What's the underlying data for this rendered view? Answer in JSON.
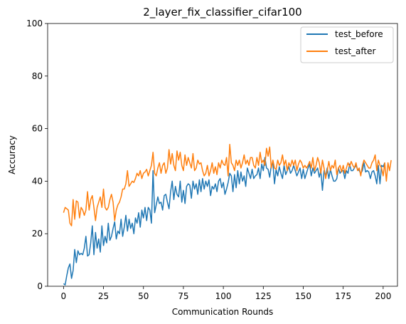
{
  "chart_data": {
    "type": "line",
    "title": "2_layer_fix_classifier_cifar100",
    "xlabel": "Communication Rounds",
    "ylabel": "Accuracy",
    "xlim": [
      -9.95,
      208.95
    ],
    "ylim": [
      0,
      100
    ],
    "xticks": [
      0,
      25,
      50,
      75,
      100,
      125,
      150,
      175,
      200
    ],
    "yticks": [
      0,
      20,
      40,
      60,
      80,
      100
    ],
    "grid": false,
    "legend_position": "top-right",
    "series": [
      {
        "name": "test_before",
        "color": "#1f77b4",
        "values": [
          1.0,
          0.5,
          4.0,
          7.0,
          8.5,
          3.0,
          6.0,
          14.0,
          9.0,
          13.5,
          12.0,
          12.5,
          12.0,
          14.5,
          19.0,
          11.5,
          12.0,
          16.5,
          23.0,
          12.0,
          20.5,
          14.5,
          18.0,
          13.0,
          23.0,
          15.5,
          19.0,
          16.5,
          24.0,
          17.5,
          19.0,
          22.0,
          24.5,
          18.0,
          21.0,
          20.0,
          25.5,
          19.0,
          22.5,
          27.0,
          21.0,
          25.5,
          22.0,
          24.0,
          20.0,
          26.0,
          24.0,
          28.0,
          22.5,
          29.0,
          26.0,
          30.0,
          25.0,
          30.0,
          29.0,
          24.0,
          44.0,
          28.0,
          31.0,
          34.0,
          31.5,
          32.0,
          29.0,
          34.5,
          35.0,
          32.0,
          29.5,
          36.0,
          40.0,
          33.0,
          38.0,
          35.0,
          34.0,
          40.0,
          32.0,
          36.5,
          31.5,
          38.0,
          39.0,
          38.5,
          33.5,
          40.0,
          37.0,
          39.0,
          35.0,
          40.5,
          36.0,
          41.0,
          37.0,
          40.0,
          38.0,
          40.5,
          34.5,
          38.0,
          37.0,
          39.0,
          36.0,
          40.0,
          41.0,
          37.5,
          39.5,
          35.0,
          37.0,
          39.5,
          43.0,
          42.0,
          36.0,
          42.5,
          37.5,
          44.0,
          39.0,
          43.5,
          40.0,
          42.0,
          38.0,
          45.0,
          43.0,
          41.0,
          44.5,
          41.0,
          42.0,
          42.5,
          45.0,
          41.0,
          46.5,
          44.0,
          49.0,
          45.0,
          44.5,
          41.5,
          46.0,
          47.0,
          39.0,
          44.5,
          42.0,
          45.5,
          43.0,
          41.0,
          46.0,
          42.5,
          44.0,
          45.5,
          43.0,
          44.0,
          46.0,
          44.0,
          42.0,
          43.5,
          45.0,
          41.0,
          44.5,
          41.0,
          43.0,
          45.0,
          46.5,
          42.0,
          45.0,
          43.0,
          44.0,
          45.0,
          41.5,
          44.0,
          36.5,
          44.0,
          42.0,
          45.0,
          41.0,
          44.5,
          42.0,
          40.0,
          40.0,
          41.0,
          45.0,
          43.0,
          44.0,
          44.0,
          41.0,
          44.0,
          43.0,
          46.5,
          44.0,
          44.0,
          45.0,
          46.0,
          44.5,
          44.0,
          43.0,
          44.0,
          47.0,
          43.5,
          44.0,
          43.5,
          41.0,
          43.5,
          44.0,
          42.0,
          39.0,
          46.0,
          39.0,
          46.0,
          45.5,
          47.0
        ]
      },
      {
        "name": "test_after",
        "color": "#ff7f0e",
        "values": [
          28.0,
          30.0,
          29.5,
          29.0,
          24.0,
          23.0,
          33.0,
          25.5,
          32.5,
          32.0,
          26.0,
          30.0,
          29.0,
          27.0,
          29.0,
          36.0,
          29.0,
          33.0,
          34.5,
          30.0,
          25.0,
          30.0,
          32.0,
          34.0,
          30.0,
          37.0,
          30.0,
          29.0,
          30.0,
          33.0,
          35.0,
          32.0,
          25.0,
          29.0,
          31.0,
          32.0,
          34.0,
          37.0,
          37.0,
          39.0,
          44.0,
          38.0,
          39.0,
          40.0,
          39.5,
          41.0,
          43.0,
          42.0,
          44.0,
          41.0,
          43.0,
          43.5,
          44.5,
          42.0,
          44.0,
          46.0,
          51.0,
          43.0,
          42.0,
          45.0,
          47.0,
          43.0,
          46.0,
          47.0,
          43.0,
          45.0,
          52.0,
          46.5,
          50.5,
          46.0,
          44.0,
          51.5,
          48.0,
          51.0,
          46.0,
          44.0,
          50.0,
          46.0,
          49.0,
          47.0,
          45.0,
          50.5,
          44.0,
          45.0,
          48.0,
          46.5,
          47.0,
          44.0,
          42.0,
          43.0,
          46.0,
          42.0,
          44.0,
          47.0,
          43.0,
          45.5,
          42.5,
          47.0,
          45.0,
          48.0,
          46.5,
          46.0,
          49.0,
          42.0,
          54.0,
          47.0,
          46.0,
          44.0,
          48.0,
          46.0,
          48.0,
          45.0,
          47.0,
          50.0,
          46.5,
          48.0,
          46.0,
          49.0,
          49.0,
          46.0,
          45.0,
          49.0,
          46.0,
          51.0,
          47.0,
          48.0,
          46.0,
          52.5,
          49.5,
          53.0,
          45.0,
          48.0,
          45.0,
          44.5,
          48.0,
          46.0,
          47.0,
          50.0,
          46.0,
          48.0,
          44.0,
          47.0,
          45.5,
          48.0,
          46.0,
          48.0,
          44.0,
          46.5,
          48.0,
          47.0,
          45.0,
          46.0,
          45.0,
          46.0,
          47.5,
          45.0,
          49.0,
          44.0,
          46.0,
          49.0,
          47.0,
          43.0,
          48.0,
          45.0,
          41.0,
          44.0,
          47.5,
          44.0,
          46.0,
          45.0,
          48.0,
          42.5,
          45.0,
          46.0,
          43.5,
          46.0,
          43.0,
          45.0,
          47.0,
          45.5,
          47.5,
          46.0,
          45.0,
          47.0,
          44.0,
          45.0,
          42.0,
          46.0,
          48.0,
          47.0,
          46.0,
          45.0,
          45.0,
          47.0,
          48.0,
          50.0,
          44.0,
          48.0,
          46.0,
          45.0,
          42.0,
          47.0,
          40.0,
          47.0,
          44.0,
          48.0
        ]
      }
    ]
  }
}
